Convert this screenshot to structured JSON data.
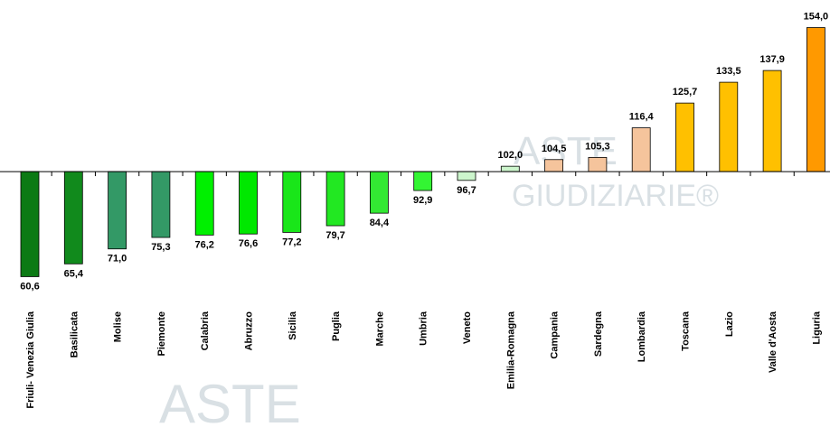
{
  "chart_data": {
    "type": "bar",
    "categories": [
      "Friuli- Venezia Giulia",
      "Basilicata",
      "Molise",
      "Piemonte",
      "Calabria",
      "Abruzzo",
      "Sicilia",
      "Puglia",
      "Marche",
      "Umbria",
      "Veneto",
      "Emilia-Romagna",
      "Campania",
      "Sardegna",
      "Lombardia",
      "Toscana",
      "Lazio",
      "Valle d'Aosta",
      "Liguria"
    ],
    "values": [
      60.6,
      65.4,
      71.0,
      75.3,
      76.2,
      76.6,
      77.2,
      79.7,
      84.4,
      92.9,
      96.7,
      102.0,
      104.5,
      105.3,
      116.4,
      125.7,
      133.5,
      137.9,
      154.0
    ],
    "value_labels": [
      "60,6",
      "65,4",
      "71,0",
      "75,3",
      "76,2",
      "76,6",
      "77,2",
      "79,7",
      "84,4",
      "92,9",
      "96,7",
      "102,0",
      "104,5",
      "105,3",
      "116,4",
      "125,7",
      "133,5",
      "137,9",
      "154,0"
    ],
    "colors": [
      "#0b7a14",
      "#118a1c",
      "#339966",
      "#339966",
      "#00f000",
      "#00e800",
      "#19e619",
      "#22e822",
      "#33e833",
      "#33f533",
      "#ccf5cc",
      "#ccf5cc",
      "#f5c49c",
      "#f5c49c",
      "#f5c49c",
      "#ffc000",
      "#ffc000",
      "#ffc000",
      "#ff9900"
    ],
    "baseline": 100,
    "ylim": [
      55,
      164
    ],
    "watermark": [
      "ASTE",
      "GIUDIZIARIE®"
    ]
  }
}
